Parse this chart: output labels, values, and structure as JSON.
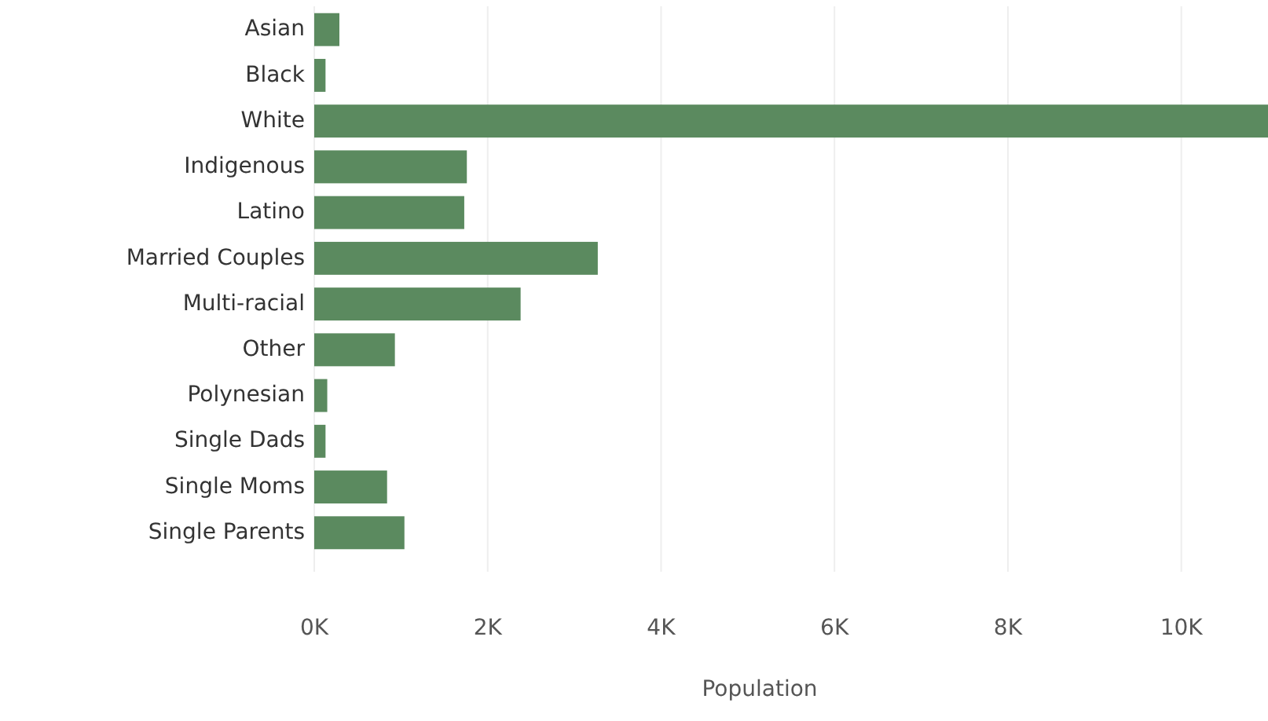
{
  "chart_data": {
    "type": "bar",
    "orientation": "horizontal",
    "xlabel": "Population",
    "categories": [
      "Asian",
      "Black",
      "White",
      "Indigenous",
      "Latino",
      "Married Couples",
      "Multi-racial",
      "Other",
      "Polynesian",
      "Single Dads",
      "Single Moms",
      "Single Parents"
    ],
    "values": [
      290,
      130,
      11000,
      1760,
      1730,
      3270,
      2380,
      930,
      150,
      130,
      840,
      1040
    ],
    "color": "#5b8a5f",
    "xlim": [
      0,
      11000
    ],
    "xticks": [
      {
        "value": 0,
        "label": "0K"
      },
      {
        "value": 2000,
        "label": "2K"
      },
      {
        "value": 4000,
        "label": "4K"
      },
      {
        "value": 6000,
        "label": "6K"
      },
      {
        "value": 8000,
        "label": "8K"
      },
      {
        "value": 10000,
        "label": "10K"
      }
    ],
    "grid": "x"
  }
}
